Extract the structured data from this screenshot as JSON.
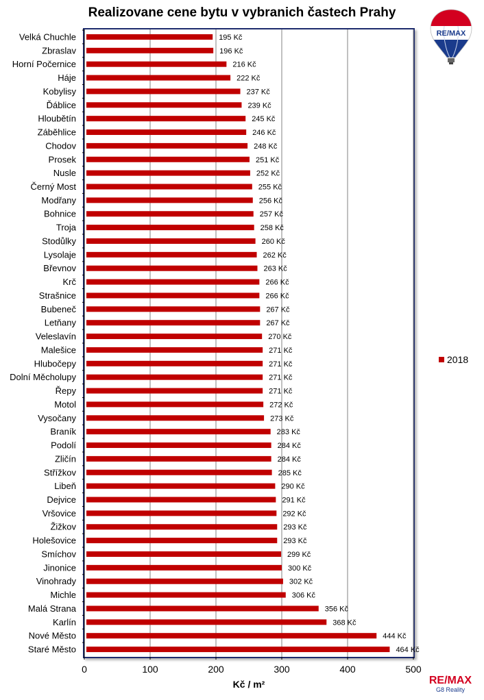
{
  "title": "Realizovane cene bytu v vybranich častech Prahy",
  "logo_top_text": "RE/MAX",
  "logo_bottom": {
    "brand": "RE/MAX",
    "sub": "G8 Reality"
  },
  "colors": {
    "bar": "#c00000",
    "grid": "#808080",
    "frame": "#1a2a6c"
  },
  "chart_data": {
    "type": "bar",
    "orientation": "horizontal",
    "categories": [
      "Velká Chuchle",
      "Zbraslav",
      "Horní Počernice",
      "Háje",
      "Kobylisy",
      "Ďáblice",
      "Hloubětín",
      "Záběhlice",
      "Chodov",
      "Prosek",
      "Nusle",
      "Černý Most",
      "Modřany",
      "Bohnice",
      "Troja",
      "Stodůlky",
      "Lysolaje",
      "Břevnov",
      "Krč",
      "Strašnice",
      "Bubeneč",
      "Letňany",
      "Veleslavín",
      "Malešice",
      "Hlubočepy",
      "Dolní Měcholupy",
      "Řepy",
      "Motol",
      "Vysočany",
      "Braník",
      "Podolí",
      "Zličín",
      "Střížkov",
      "Libeň",
      "Dejvice",
      "Vršovice",
      "Žižkov",
      "Holešovice",
      "Smíchov",
      "Jinonice",
      "Vinohrady",
      "Michle",
      "Malá Strana",
      "Karlín",
      "Nové Město",
      "Staré Město"
    ],
    "series": [
      {
        "name": "2018",
        "values": [
          195,
          196,
          216,
          222,
          237,
          239,
          245,
          246,
          248,
          251,
          252,
          255,
          256,
          257,
          258,
          260,
          262,
          263,
          266,
          266,
          267,
          267,
          270,
          271,
          271,
          271,
          271,
          272,
          273,
          283,
          284,
          284,
          285,
          290,
          291,
          292,
          293,
          293,
          299,
          300,
          302,
          306,
          356,
          368,
          444,
          464
        ],
        "labels": [
          "195 Kč",
          "196 Kč",
          "216 Kč",
          "222 Kč",
          "237 Kč",
          "239 Kč",
          "245 Kč",
          "246 Kč",
          "248 Kč",
          "251 Kč",
          "252 Kč",
          "255 Kč",
          "256 Kč",
          "257 Kč",
          "258 Kč",
          "260 Kč",
          "262 Kč",
          "263 Kč",
          "266 Kč",
          "266 Kč",
          "267 Kč",
          "267 Kč",
          "270 Kč",
          "271 Kč",
          "271 Kč",
          "271 Kč",
          "271 Kč",
          "272 Kč",
          "273 Kč",
          "283 Kč",
          "284 Kč",
          "284 Kč",
          "285 Kč",
          "290 Kč",
          "291 Kč",
          "292 Kč",
          "293 Kč",
          "293 Kč",
          "299 Kč",
          "300 Kč",
          "302 Kč",
          "306 Kč",
          "356 Kč",
          "368 Kč",
          "444 Kč",
          "464 Kč"
        ]
      }
    ],
    "xlabel": "Kč / m²",
    "xlim": [
      0,
      500
    ],
    "xticks": [
      "0",
      "100",
      "200",
      "300",
      "400",
      "500"
    ],
    "grid": true,
    "legend": "right"
  }
}
